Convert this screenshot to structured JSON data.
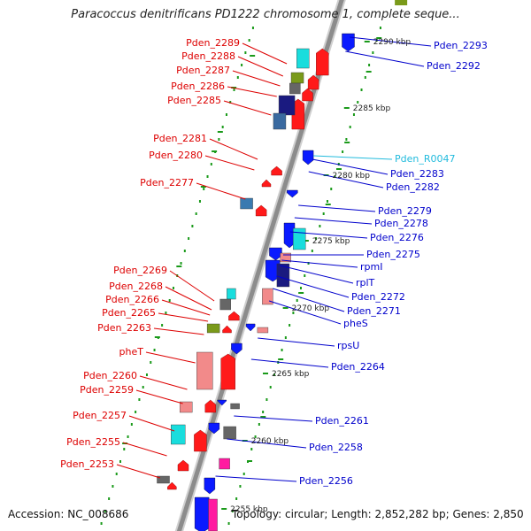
{
  "title": "Paracoccus denitrificans PD1222 chromosome 1, complete seque...",
  "accession": "Accession: NC_008686",
  "topology": "Topology: circular; Length: 2,852,282 bp; Genes: 2,850",
  "colors": {
    "left_label": "#dd0000",
    "right_label": "#0000cc",
    "rna_label": "#22bbdd",
    "backbone": "#8c8c8c",
    "tick_dot": "#1a9a1a",
    "gene_red": "#ff1a1a",
    "gene_blue": "#0a1aff",
    "gene_cyan": "#19dddd",
    "gene_pink": "#f28a8a",
    "gene_navy": "#1a1a80",
    "gene_olive": "#7a9a1a",
    "gene_magenta": "#ff1aa0"
  },
  "scale_labels": [
    "2290 kbp",
    "2285 kbp",
    "2280 kbp",
    "2275 kbp",
    "2270 kbp",
    "2265 kbp",
    "2260 kbp",
    "2255 kbp"
  ],
  "left_labels": [
    "Pden_2289",
    "Pden_2288",
    "Pden_2287",
    "Pden_2286",
    "Pden_2285",
    "Pden_2281",
    "Pden_2280",
    "Pden_2277",
    "Pden_2269",
    "Pden_2268",
    "Pden_2266",
    "Pden_2265",
    "Pden_2263",
    "pheT",
    "Pden_2260",
    "Pden_2259",
    "Pden_2257",
    "Pden_2255",
    "Pden_2253"
  ],
  "right_labels": [
    "Pden_2293",
    "Pden_2292",
    "Pden_R0047",
    "Pden_2283",
    "Pden_2282",
    "Pden_2279",
    "Pden_2278",
    "Pden_2276",
    "Pden_2275",
    "rpmI",
    "rplT",
    "Pden_2272",
    "Pden_2271",
    "pheS",
    "rpsU",
    "Pden_2264",
    "Pden_2261",
    "Pden_2258",
    "Pden_2256"
  ]
}
